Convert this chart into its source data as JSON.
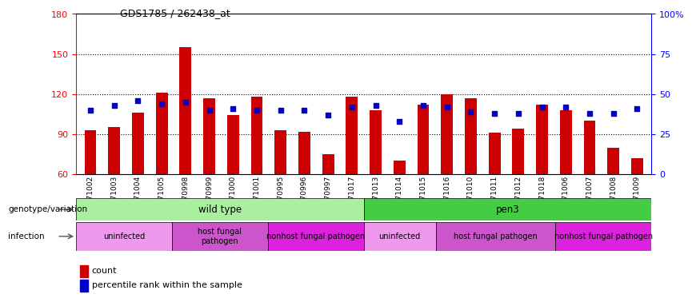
{
  "title": "GDS1785 / 262438_at",
  "samples": [
    "GSM71002",
    "GSM71003",
    "GSM71004",
    "GSM71005",
    "GSM70998",
    "GSM70999",
    "GSM71000",
    "GSM71001",
    "GSM70995",
    "GSM70996",
    "GSM70997",
    "GSM71017",
    "GSM71013",
    "GSM71014",
    "GSM71015",
    "GSM71016",
    "GSM71010",
    "GSM71011",
    "GSM71012",
    "GSM71018",
    "GSM71006",
    "GSM71007",
    "GSM71008",
    "GSM71009"
  ],
  "count_values": [
    93,
    95,
    106,
    121,
    155,
    117,
    104,
    118,
    93,
    92,
    75,
    118,
    108,
    70,
    112,
    120,
    117,
    91,
    94,
    112,
    108,
    100,
    80,
    72
  ],
  "percentile_values": [
    40,
    43,
    46,
    44,
    45,
    40,
    41,
    40,
    40,
    40,
    37,
    42,
    43,
    33,
    43,
    42,
    39,
    38,
    38,
    42,
    42,
    38,
    38,
    41
  ],
  "ymin": 60,
  "ymax": 180,
  "yticks_left": [
    60,
    90,
    120,
    150,
    180
  ],
  "yticks_right_vals": [
    0,
    25,
    50,
    75,
    100
  ],
  "yticks_right_labels": [
    "0",
    "25",
    "50",
    "75",
    "100%"
  ],
  "bar_color": "#cc0000",
  "dot_color": "#0000cc",
  "bar_bottom": 60,
  "genotype_groups": [
    {
      "label": "wild type",
      "start": 0,
      "end": 12,
      "color": "#aaeea0"
    },
    {
      "label": "pen3",
      "start": 12,
      "end": 24,
      "color": "#44cc44"
    }
  ],
  "infection_groups": [
    {
      "label": "uninfected",
      "start": 0,
      "end": 4,
      "color": "#ee88ee"
    },
    {
      "label": "host fungal\npathogen",
      "start": 4,
      "end": 8,
      "color": "#cc66cc"
    },
    {
      "label": "nonhost fungal pathogen",
      "start": 8,
      "end": 12,
      "color": "#ee44ee"
    },
    {
      "label": "uninfected",
      "start": 12,
      "end": 15,
      "color": "#ee88ee"
    },
    {
      "label": "host fungal pathogen",
      "start": 15,
      "end": 20,
      "color": "#cc66cc"
    },
    {
      "label": "nonhost fungal pathogen",
      "start": 20,
      "end": 24,
      "color": "#ee44ee"
    }
  ],
  "grid_levels": [
    90,
    120,
    150
  ],
  "bg_color": "#ffffff"
}
